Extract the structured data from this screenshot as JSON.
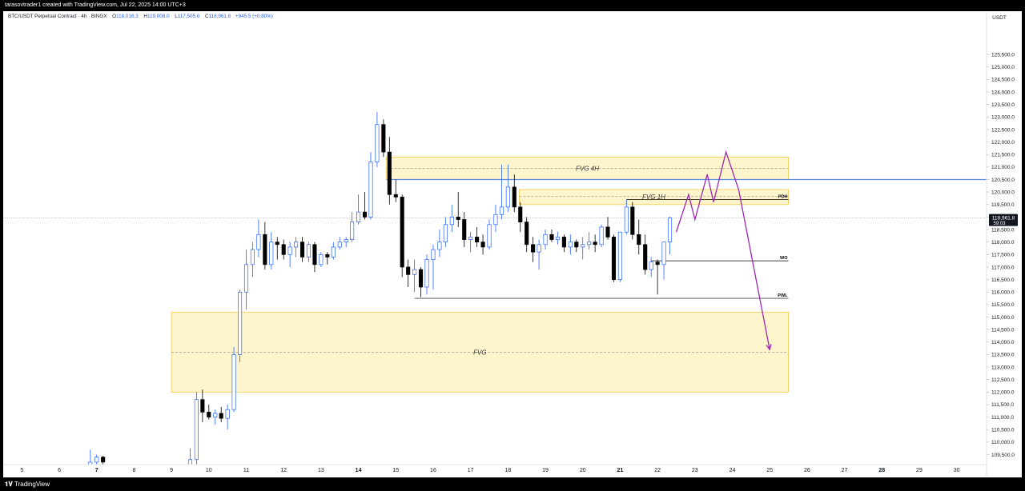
{
  "header": {
    "credit": "tarasovtrader1 created with TradingView.com, Jul 22, 2025 14:00 UTC+3"
  },
  "footer": {
    "brand": "TradingView"
  },
  "legend": {
    "title": "BTC/USDT Perpetual Contract · 4h · BINGX",
    "o_label": "O",
    "o": "118,016.3",
    "h_label": "H",
    "h": "119,008.0",
    "l_label": "L",
    "l": "117,505.0",
    "c_label": "C",
    "c": "118,961.8",
    "change": "+945.5 (+0.80%)"
  },
  "colors": {
    "up": "#2962ff",
    "down": "#000000",
    "zone": "#fff3c4",
    "zone_border": "#f2c94c",
    "projection": "#9c27b0",
    "blue_line": "#5b8def"
  },
  "chart_data": {
    "type": "candlestick",
    "currency": "USDT",
    "ylim": [
      109100,
      126400
    ],
    "xlim": [
      4.5,
      30.8
    ],
    "y_ticks": [
      109500,
      110000,
      110500,
      111000,
      111500,
      112000,
      112500,
      113000,
      113500,
      114000,
      114500,
      115000,
      115500,
      116000,
      116500,
      117000,
      117500,
      118000,
      118500,
      119000,
      119500,
      120000,
      120500,
      121000,
      121500,
      122000,
      122500,
      123000,
      123500,
      124000,
      124500,
      125000,
      125500
    ],
    "y_tick_labels": [
      "109,500.0",
      "110,000.0",
      "110,500.0",
      "111,000.0",
      "111,500.0",
      "112,000.0",
      "112,500.0",
      "113,000.0",
      "113,500.0",
      "114,000.0",
      "114,500.0",
      "115,000.0",
      "115,500.0",
      "116,000.0",
      "116,500.0",
      "117,000.0",
      "117,500.0",
      "118,000.0",
      "118,500.0",
      "119,000.0",
      "119,500.0",
      "120,000.0",
      "120,500.0",
      "121,000.0",
      "121,500.0",
      "122,000.0",
      "122,500.0",
      "123,000.0",
      "123,500.0",
      "124,000.0",
      "124,500.0",
      "125,000.0",
      "125,500.0"
    ],
    "x_ticks": [
      {
        "day": 5,
        "label": "5",
        "bold": false
      },
      {
        "day": 6,
        "label": "6",
        "bold": false
      },
      {
        "day": 7,
        "label": "7",
        "bold": true
      },
      {
        "day": 8,
        "label": "8",
        "bold": false
      },
      {
        "day": 9,
        "label": "9",
        "bold": false
      },
      {
        "day": 10,
        "label": "10",
        "bold": false
      },
      {
        "day": 11,
        "label": "11",
        "bold": false
      },
      {
        "day": 12,
        "label": "12",
        "bold": false
      },
      {
        "day": 13,
        "label": "13",
        "bold": false
      },
      {
        "day": 14,
        "label": "14",
        "bold": true
      },
      {
        "day": 15,
        "label": "15",
        "bold": false
      },
      {
        "day": 16,
        "label": "16",
        "bold": false
      },
      {
        "day": 17,
        "label": "17",
        "bold": false
      },
      {
        "day": 18,
        "label": "18",
        "bold": false
      },
      {
        "day": 19,
        "label": "19",
        "bold": false
      },
      {
        "day": 20,
        "label": "20",
        "bold": false
      },
      {
        "day": 21,
        "label": "21",
        "bold": true
      },
      {
        "day": 22,
        "label": "22",
        "bold": false
      },
      {
        "day": 23,
        "label": "23",
        "bold": false
      },
      {
        "day": 24,
        "label": "24",
        "bold": false
      },
      {
        "day": 25,
        "label": "25",
        "bold": false
      },
      {
        "day": 26,
        "label": "26",
        "bold": false
      },
      {
        "day": 27,
        "label": "27",
        "bold": false
      },
      {
        "day": 28,
        "label": "28",
        "bold": true
      },
      {
        "day": 29,
        "label": "29",
        "bold": false
      },
      {
        "day": 30,
        "label": "30",
        "bold": false
      }
    ],
    "last_price": {
      "value": 118961.8,
      "label": "118,961.8",
      "countdown": "59:03"
    },
    "candles": [
      {
        "t": 6.83,
        "o": 109100,
        "h": 109700,
        "l": 109100,
        "c": 109200
      },
      {
        "t": 7.0,
        "o": 109200,
        "h": 109500,
        "l": 109100,
        "c": 109400
      },
      {
        "t": 7.17,
        "o": 109400,
        "h": 109450,
        "l": 109100,
        "c": 109200
      },
      {
        "t": 9.5,
        "o": 109100,
        "h": 109750,
        "l": 109100,
        "c": 109300
      },
      {
        "t": 9.67,
        "o": 109300,
        "h": 112000,
        "l": 109100,
        "c": 111700
      },
      {
        "t": 9.83,
        "o": 111700,
        "h": 112100,
        "l": 110800,
        "c": 111200
      },
      {
        "t": 10.0,
        "o": 111200,
        "h": 111500,
        "l": 110900,
        "c": 111000
      },
      {
        "t": 10.17,
        "o": 111000,
        "h": 111300,
        "l": 110700,
        "c": 111150
      },
      {
        "t": 10.33,
        "o": 111150,
        "h": 111400,
        "l": 110800,
        "c": 110950
      },
      {
        "t": 10.5,
        "o": 110950,
        "h": 111500,
        "l": 110500,
        "c": 111300
      },
      {
        "t": 10.67,
        "o": 111300,
        "h": 113800,
        "l": 111200,
        "c": 113500
      },
      {
        "t": 10.83,
        "o": 113500,
        "h": 116100,
        "l": 113200,
        "c": 116000
      },
      {
        "t": 11.0,
        "o": 116000,
        "h": 117700,
        "l": 115300,
        "c": 117100
      },
      {
        "t": 11.17,
        "o": 117100,
        "h": 118000,
        "l": 116600,
        "c": 117700
      },
      {
        "t": 11.33,
        "o": 117700,
        "h": 118900,
        "l": 117400,
        "c": 118300
      },
      {
        "t": 11.5,
        "o": 118300,
        "h": 118800,
        "l": 116900,
        "c": 117100
      },
      {
        "t": 11.67,
        "o": 117100,
        "h": 118400,
        "l": 116900,
        "c": 118000
      },
      {
        "t": 11.83,
        "o": 118000,
        "h": 118200,
        "l": 117300,
        "c": 117900
      },
      {
        "t": 12.0,
        "o": 117900,
        "h": 118100,
        "l": 117300,
        "c": 117500
      },
      {
        "t": 12.17,
        "o": 117500,
        "h": 118000,
        "l": 117000,
        "c": 117800
      },
      {
        "t": 12.33,
        "o": 117800,
        "h": 118200,
        "l": 117400,
        "c": 118000
      },
      {
        "t": 12.5,
        "o": 118000,
        "h": 118200,
        "l": 117200,
        "c": 117400
      },
      {
        "t": 12.67,
        "o": 117400,
        "h": 118000,
        "l": 117200,
        "c": 117900
      },
      {
        "t": 12.83,
        "o": 117900,
        "h": 118000,
        "l": 116800,
        "c": 117100
      },
      {
        "t": 13.0,
        "o": 117100,
        "h": 117600,
        "l": 117000,
        "c": 117500
      },
      {
        "t": 13.17,
        "o": 117500,
        "h": 117600,
        "l": 117100,
        "c": 117400
      },
      {
        "t": 13.33,
        "o": 117400,
        "h": 118000,
        "l": 117300,
        "c": 117800
      },
      {
        "t": 13.5,
        "o": 117800,
        "h": 118200,
        "l": 117700,
        "c": 118000
      },
      {
        "t": 13.67,
        "o": 118000,
        "h": 118200,
        "l": 117800,
        "c": 118100
      },
      {
        "t": 13.83,
        "o": 118100,
        "h": 119200,
        "l": 118000,
        "c": 118800
      },
      {
        "t": 14.0,
        "o": 118800,
        "h": 119900,
        "l": 118700,
        "c": 119200
      },
      {
        "t": 14.17,
        "o": 119200,
        "h": 120000,
        "l": 118900,
        "c": 119000
      },
      {
        "t": 14.33,
        "o": 119000,
        "h": 121600,
        "l": 118900,
        "c": 121200
      },
      {
        "t": 14.5,
        "o": 121200,
        "h": 123200,
        "l": 121000,
        "c": 122700
      },
      {
        "t": 14.67,
        "o": 122700,
        "h": 122900,
        "l": 121400,
        "c": 121600
      },
      {
        "t": 14.83,
        "o": 121600,
        "h": 122200,
        "l": 119500,
        "c": 119900
      },
      {
        "t": 15.0,
        "o": 119900,
        "h": 120500,
        "l": 119600,
        "c": 119800
      },
      {
        "t": 15.17,
        "o": 119800,
        "h": 119900,
        "l": 116600,
        "c": 117000
      },
      {
        "t": 15.33,
        "o": 117000,
        "h": 117300,
        "l": 116200,
        "c": 116700
      },
      {
        "t": 15.5,
        "o": 116700,
        "h": 117300,
        "l": 116000,
        "c": 116900
      },
      {
        "t": 15.67,
        "o": 116900,
        "h": 117000,
        "l": 115800,
        "c": 116200
      },
      {
        "t": 15.83,
        "o": 116200,
        "h": 117500,
        "l": 115900,
        "c": 117300
      },
      {
        "t": 16.0,
        "o": 117300,
        "h": 117900,
        "l": 116100,
        "c": 117700
      },
      {
        "t": 16.17,
        "o": 117700,
        "h": 118500,
        "l": 117400,
        "c": 118000
      },
      {
        "t": 16.33,
        "o": 118000,
        "h": 119000,
        "l": 117800,
        "c": 118700
      },
      {
        "t": 16.5,
        "o": 118700,
        "h": 119500,
        "l": 118400,
        "c": 119000
      },
      {
        "t": 16.67,
        "o": 119000,
        "h": 120000,
        "l": 118600,
        "c": 118900
      },
      {
        "t": 16.83,
        "o": 118900,
        "h": 119200,
        "l": 117800,
        "c": 118100
      },
      {
        "t": 17.0,
        "o": 118100,
        "h": 118400,
        "l": 117600,
        "c": 118200
      },
      {
        "t": 17.17,
        "o": 118200,
        "h": 118600,
        "l": 117800,
        "c": 118000
      },
      {
        "t": 17.33,
        "o": 118000,
        "h": 118300,
        "l": 117500,
        "c": 117800
      },
      {
        "t": 17.5,
        "o": 117800,
        "h": 118900,
        "l": 117700,
        "c": 118700
      },
      {
        "t": 17.67,
        "o": 118700,
        "h": 119500,
        "l": 118400,
        "c": 119100
      },
      {
        "t": 17.83,
        "o": 119100,
        "h": 121100,
        "l": 118900,
        "c": 119400
      },
      {
        "t": 18.0,
        "o": 119400,
        "h": 121100,
        "l": 119200,
        "c": 120200
      },
      {
        "t": 18.17,
        "o": 120200,
        "h": 120700,
        "l": 119200,
        "c": 119400
      },
      {
        "t": 18.33,
        "o": 119400,
        "h": 119600,
        "l": 118400,
        "c": 118800
      },
      {
        "t": 18.5,
        "o": 118800,
        "h": 119000,
        "l": 117600,
        "c": 117900
      },
      {
        "t": 18.67,
        "o": 117900,
        "h": 118200,
        "l": 117200,
        "c": 117600
      },
      {
        "t": 18.83,
        "o": 117600,
        "h": 118100,
        "l": 116900,
        "c": 117900
      },
      {
        "t": 19.0,
        "o": 117900,
        "h": 118500,
        "l": 117700,
        "c": 118300
      },
      {
        "t": 19.17,
        "o": 118300,
        "h": 118500,
        "l": 118000,
        "c": 118100
      },
      {
        "t": 19.33,
        "o": 118100,
        "h": 118400,
        "l": 117900,
        "c": 118200
      },
      {
        "t": 19.5,
        "o": 118200,
        "h": 118300,
        "l": 117600,
        "c": 117800
      },
      {
        "t": 19.67,
        "o": 117800,
        "h": 118300,
        "l": 117500,
        "c": 118000
      },
      {
        "t": 19.83,
        "o": 118000,
        "h": 118100,
        "l": 117600,
        "c": 117800
      },
      {
        "t": 20.0,
        "o": 117800,
        "h": 118200,
        "l": 117300,
        "c": 117900
      },
      {
        "t": 20.17,
        "o": 117900,
        "h": 118400,
        "l": 117700,
        "c": 118000
      },
      {
        "t": 20.33,
        "o": 118000,
        "h": 118300,
        "l": 117600,
        "c": 117900
      },
      {
        "t": 20.5,
        "o": 117900,
        "h": 118700,
        "l": 117800,
        "c": 118600
      },
      {
        "t": 20.67,
        "o": 118600,
        "h": 119000,
        "l": 118100,
        "c": 118200
      },
      {
        "t": 20.83,
        "o": 118200,
        "h": 118300,
        "l": 116400,
        "c": 116500
      },
      {
        "t": 21.0,
        "o": 116500,
        "h": 118400,
        "l": 116400,
        "c": 118400
      },
      {
        "t": 21.17,
        "o": 118400,
        "h": 119700,
        "l": 118300,
        "c": 119400
      },
      {
        "t": 21.33,
        "o": 119400,
        "h": 119600,
        "l": 118100,
        "c": 118300
      },
      {
        "t": 21.5,
        "o": 118300,
        "h": 118900,
        "l": 117500,
        "c": 117900
      },
      {
        "t": 21.67,
        "o": 117900,
        "h": 118300,
        "l": 116700,
        "c": 116900
      },
      {
        "t": 21.83,
        "o": 116900,
        "h": 117400,
        "l": 116600,
        "c": 117200
      },
      {
        "t": 22.0,
        "o": 117200,
        "h": 117300,
        "l": 115900,
        "c": 117100
      },
      {
        "t": 22.17,
        "o": 117100,
        "h": 118000,
        "l": 116500,
        "c": 118000
      },
      {
        "t": 22.33,
        "o": 118000,
        "h": 119008,
        "l": 117505,
        "c": 118961.8
      }
    ],
    "zones": [
      {
        "label": "FVG 4H",
        "t0": 14.75,
        "t1": 25.5,
        "top": 121400,
        "bottom": 120500,
        "mid": 120950
      },
      {
        "label": "FVG 1H",
        "t0": 18.3,
        "t1": 25.5,
        "top": 120100,
        "bottom": 119500,
        "mid": 119820
      },
      {
        "label": "FVG",
        "t0": 9.0,
        "t1": 25.5,
        "top": 115200,
        "bottom": 112000,
        "mid": 113600
      }
    ],
    "levels": [
      {
        "label": "PDH",
        "t0": 21.17,
        "t1": 25.5,
        "value": 119700,
        "color": "#000000"
      },
      {
        "label": "WO",
        "t0": 21.83,
        "t1": 25.5,
        "value": 117250,
        "color": "#000000"
      },
      {
        "label": "PWL",
        "t0": 15.5,
        "t1": 25.5,
        "value": 115750,
        "color": "#000000"
      }
    ],
    "horizontal_line": {
      "t0": 14.75,
      "value": 120500,
      "color": "#5b8def"
    },
    "projection": [
      {
        "t": 22.5,
        "y": 118400
      },
      {
        "t": 22.83,
        "y": 119900
      },
      {
        "t": 23.0,
        "y": 118900
      },
      {
        "t": 23.33,
        "y": 120700
      },
      {
        "t": 23.5,
        "y": 119600
      },
      {
        "t": 23.83,
        "y": 121600
      },
      {
        "t": 24.17,
        "y": 120100
      },
      {
        "t": 25.0,
        "y": 113700
      }
    ]
  }
}
